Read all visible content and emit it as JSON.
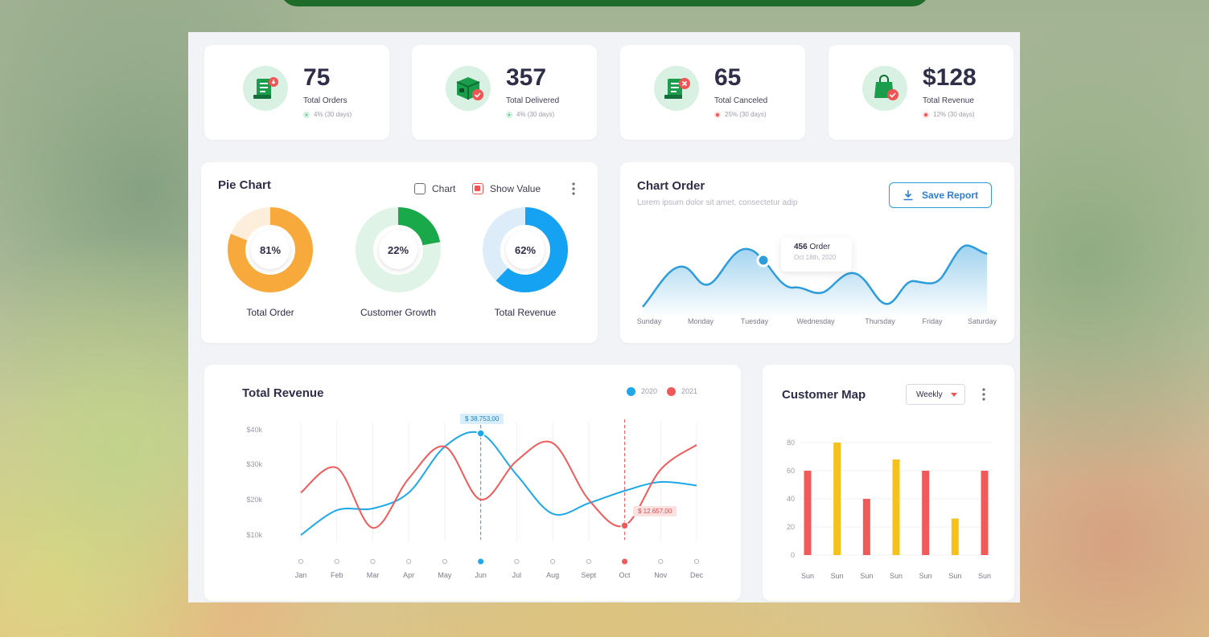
{
  "stats": [
    {
      "value": "75",
      "label": "Total Orders",
      "change": "4% (30 days)",
      "trend": "up",
      "icon": "receipt-icon"
    },
    {
      "value": "357",
      "label": "Total Delivered",
      "change": "4% (30 days)",
      "trend": "up",
      "icon": "box-delivered-icon"
    },
    {
      "value": "65",
      "label": "Total Canceled",
      "change": "25% (30 days)",
      "trend": "down",
      "icon": "receipt-canceled-icon"
    },
    {
      "value": "$128",
      "label": "Total Revenue",
      "change": "12% (30 days)",
      "trend": "down",
      "icon": "shopping-bag-icon"
    }
  ],
  "pie_card": {
    "title": "Pie Chart",
    "chart_toggle": "Chart",
    "show_value_toggle": "Show Value",
    "donuts": [
      {
        "label": "Total Order",
        "percent": 81,
        "percent_text": "81%",
        "color": "#f8a93c",
        "track": "#fdeedb"
      },
      {
        "label": "Customer Growth",
        "percent": 22,
        "percent_text": "22%",
        "color": "#19a84a",
        "track": "#dff3e6"
      },
      {
        "label": "Total Revenue",
        "percent": 62,
        "percent_text": "62%",
        "color": "#16a2f2",
        "track": "#dcecf8"
      }
    ]
  },
  "chart_order": {
    "title": "Chart Order",
    "subtitle": "Lorem ipsum dolor sit amet, consectetur adip",
    "save_button": "Save Report",
    "tooltip_value": "456",
    "tooltip_unit": "Order",
    "tooltip_date": "Oct 18th, 2020",
    "days": [
      "Sunday",
      "Monday",
      "Tuesday",
      "Wednesday",
      "Thursday",
      "Friday",
      "Saturday"
    ],
    "color": "#2d9cdb"
  },
  "revenue": {
    "title": "Total Revenue",
    "legend": [
      {
        "name": "2020",
        "color": "#1ea7e9"
      },
      {
        "name": "2021",
        "color": "#f05a5a"
      }
    ],
    "y_ticks": [
      "$40k",
      "$30k",
      "$20k",
      "$10k"
    ],
    "months": [
      "Jan",
      "Feb",
      "Mar",
      "Apr",
      "May",
      "Jun",
      "Jul",
      "Aug",
      "Sept",
      "Oct",
      "Nov",
      "Dec"
    ],
    "tag_2020": "$ 38.753,00",
    "tag_2021": "$ 12.657,00"
  },
  "customer_map": {
    "title": "Customer Map",
    "period": "Weekly",
    "y_ticks": [
      "80",
      "60",
      "40",
      "20",
      "0"
    ],
    "days": [
      "Sun",
      "Sun",
      "Sun",
      "Sun",
      "Sun",
      "Sun",
      "Sun"
    ]
  },
  "chart_data": [
    {
      "type": "area",
      "title": "Chart Order",
      "categories": [
        "Sunday",
        "Monday",
        "Tuesday",
        "Wednesday",
        "Thursday",
        "Friday",
        "Saturday"
      ],
      "annotation": {
        "value": 456,
        "label": "Order",
        "date": "Oct 18th, 2020"
      }
    },
    {
      "type": "line",
      "title": "Total Revenue",
      "categories": [
        "Jan",
        "Feb",
        "Mar",
        "Apr",
        "May",
        "Jun",
        "Jul",
        "Aug",
        "Sept",
        "Oct",
        "Nov",
        "Dec"
      ],
      "ylim": [
        10000,
        40000
      ],
      "series": [
        {
          "name": "2020",
          "values": [
            10000,
            17000,
            17500,
            22000,
            35000,
            38753,
            27000,
            16000,
            19000,
            22500,
            25000,
            24000
          ]
        },
        {
          "name": "2021",
          "values": [
            22000,
            29000,
            12000,
            26000,
            35000,
            20000,
            31000,
            36000,
            20000,
            12657,
            28500,
            35500
          ]
        }
      ]
    },
    {
      "type": "bar",
      "title": "Customer Map",
      "categories": [
        "Sun",
        "Sun",
        "Sun",
        "Sun",
        "Sun",
        "Sun",
        "Sun"
      ],
      "values": [
        60,
        80,
        40,
        68,
        60,
        26,
        60
      ],
      "colors": [
        "#f05a5a",
        "#f5c21b",
        "#f05a5a",
        "#f5c21b",
        "#f05a5a",
        "#f5c21b",
        "#f05a5a"
      ],
      "ylim": [
        0,
        80
      ]
    }
  ]
}
